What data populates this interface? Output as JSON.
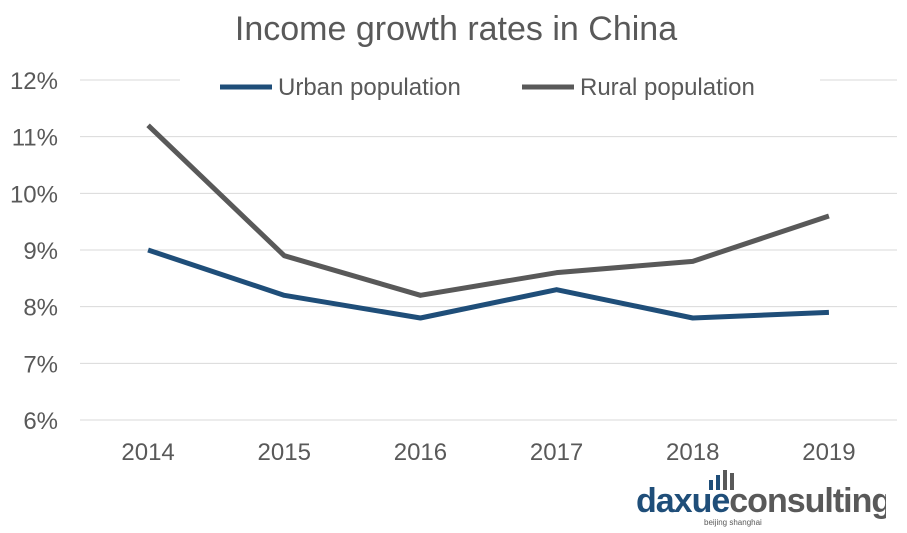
{
  "chart_data": {
    "type": "line",
    "title": "Income growth rates in China",
    "xlabel": "",
    "ylabel": "",
    "categories": [
      "2014",
      "2015",
      "2016",
      "2017",
      "2018",
      "2019"
    ],
    "ylim": [
      6,
      12
    ],
    "yticks": [
      "6%",
      "7%",
      "8%",
      "9%",
      "10%",
      "11%",
      "12%"
    ],
    "grid": true,
    "legend_placement": "top",
    "series": [
      {
        "name": "Urban population",
        "color": "#1f4e79",
        "values": [
          9.0,
          8.2,
          7.8,
          8.3,
          7.8,
          7.9
        ]
      },
      {
        "name": "Rural population",
        "color": "#595959",
        "values": [
          11.2,
          8.9,
          8.2,
          8.6,
          8.8,
          9.6
        ]
      }
    ]
  },
  "logo": {
    "part1": "daxue",
    "part2": "consulting",
    "tagline": "beijing shanghai"
  }
}
